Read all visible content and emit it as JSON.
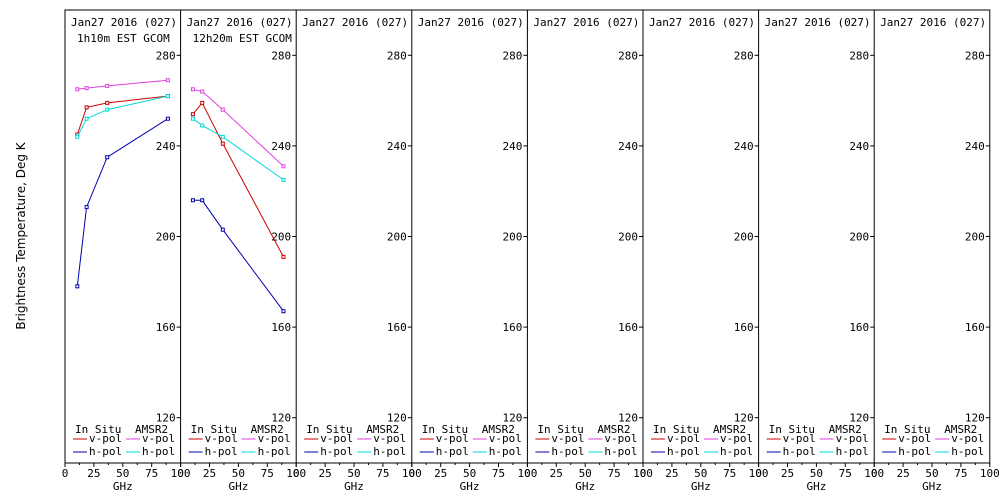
{
  "chart_data": {
    "type": "line",
    "ylabel": "Brightness Temperature, Deg K",
    "ylim": [
      100,
      300
    ],
    "y_ticks": [
      "120",
      "160",
      "200",
      "240",
      "280"
    ],
    "xlim": [
      0,
      100
    ],
    "x_ticks": [
      "0",
      "25",
      "50",
      "75",
      "100"
    ],
    "xlabel": "GHz",
    "legend": {
      "placement": "bottom",
      "groups": [
        "In Situ",
        "AMSR2"
      ],
      "entries": [
        "v-pol",
        "h-pol",
        "v-pol",
        "h-pol"
      ]
    },
    "colors": {
      "insitu_v": "#cc0000",
      "insitu_h": "#0000aa",
      "amsr2_v": "#e040e0",
      "amsr2_h": "#00d8d8"
    },
    "panels": [
      {
        "title": "Jan27 2016 (027)",
        "subtitle": "1h10m EST GCOM",
        "series": [
          {
            "name": "In Situ v-pol",
            "x": [
              10.65,
              18.7,
              36.5,
              89.0
            ],
            "y": [
              245,
              257,
              259,
              262
            ]
          },
          {
            "name": "In Situ h-pol",
            "x": [
              10.65,
              18.7,
              36.5,
              89.0
            ],
            "y": [
              178,
              213,
              235,
              252
            ]
          },
          {
            "name": "AMSR2 v-pol",
            "x": [
              10.65,
              18.7,
              36.5,
              89.0
            ],
            "y": [
              265,
              265.5,
              266.5,
              269
            ]
          },
          {
            "name": "AMSR2 h-pol",
            "x": [
              10.65,
              18.7,
              36.5,
              89.0
            ],
            "y": [
              244,
              252,
              256,
              262
            ]
          }
        ]
      },
      {
        "title": "Jan27 2016 (027)",
        "subtitle": "12h20m EST GCOM",
        "series": [
          {
            "name": "In Situ v-pol",
            "x": [
              10.65,
              18.7,
              36.5,
              89.0
            ],
            "y": [
              254,
              259,
              241,
              191
            ]
          },
          {
            "name": "In Situ h-pol",
            "x": [
              10.65,
              18.7,
              36.5,
              89.0
            ],
            "y": [
              216,
              216,
              203,
              167
            ]
          },
          {
            "name": "AMSR2 v-pol",
            "x": [
              10.65,
              18.7,
              36.5,
              89.0
            ],
            "y": [
              265,
              264,
              256,
              231
            ]
          },
          {
            "name": "AMSR2 h-pol",
            "x": [
              10.65,
              18.7,
              36.5,
              89.0
            ],
            "y": [
              252,
              249,
              244,
              225
            ]
          }
        ]
      },
      {
        "title": "Jan27 2016 (027)",
        "subtitle": "",
        "series": []
      },
      {
        "title": "Jan27 2016 (027)",
        "subtitle": "",
        "series": []
      },
      {
        "title": "Jan27 2016 (027)",
        "subtitle": "",
        "series": []
      },
      {
        "title": "Jan27 2016 (027)",
        "subtitle": "",
        "series": []
      },
      {
        "title": "Jan27 2016 (027)",
        "subtitle": "",
        "series": []
      },
      {
        "title": "Jan27 2016 (027)",
        "subtitle": "",
        "series": []
      }
    ]
  }
}
